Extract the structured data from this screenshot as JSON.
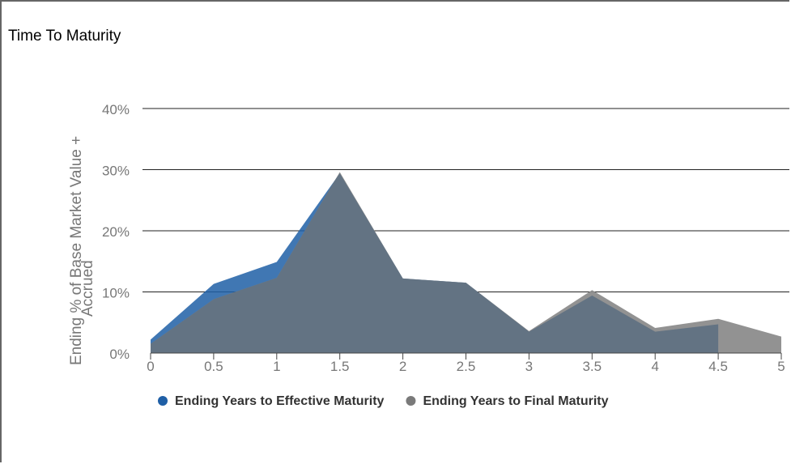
{
  "panel": {
    "title": "Time To Maturity"
  },
  "chart_data": {
    "type": "area",
    "title": "Time To Maturity",
    "xlabel": "",
    "ylabel": "Ending % of Base Market Value + Accrued",
    "ylabel_lines": [
      "Ending % of Base Market Value +",
      "Accrued"
    ],
    "x": [
      0,
      0.5,
      1,
      1.5,
      2,
      2.5,
      3,
      3.5,
      4,
      4.5,
      5
    ],
    "x_tick_labels": [
      "0",
      "0.5",
      "1",
      "1.5",
      "2",
      "2.5",
      "3",
      "3.5",
      "4",
      "4.5",
      "5"
    ],
    "y_ticks": [
      0,
      10,
      20,
      30,
      40
    ],
    "y_tick_labels": [
      "0%",
      "10%",
      "20%",
      "30%",
      "40%"
    ],
    "xlim": [
      0,
      5
    ],
    "ylim": [
      0,
      40
    ],
    "grid": true,
    "legend_position": "bottom-left",
    "series": [
      {
        "name": "Ending Years to Final Maturity",
        "color": "#8c8c8c",
        "x": [
          0,
          0.5,
          1,
          1.5,
          2,
          2.5,
          3,
          3.5,
          4,
          4.5,
          5
        ],
        "values": [
          1.5,
          8.8,
          12.3,
          29.6,
          12.2,
          11.5,
          3.6,
          10.3,
          4.1,
          5.6,
          2.7
        ]
      },
      {
        "name": "Ending Years to Effective Maturity",
        "color": "#1f5fa6",
        "x": [
          0,
          0.5,
          1,
          1.5,
          2,
          2.5,
          3,
          3.5,
          4,
          4.5
        ],
        "values": [
          2.2,
          11.3,
          14.9,
          29.4,
          12.2,
          11.5,
          3.5,
          9.4,
          3.5,
          4.7
        ]
      }
    ],
    "overlap_color": "#637383",
    "legend": [
      {
        "label": "Ending Years to Effective Maturity",
        "color": "#1f5fa6"
      },
      {
        "label": "Ending Years to Final Maturity",
        "color": "#7a7a7a"
      }
    ]
  }
}
